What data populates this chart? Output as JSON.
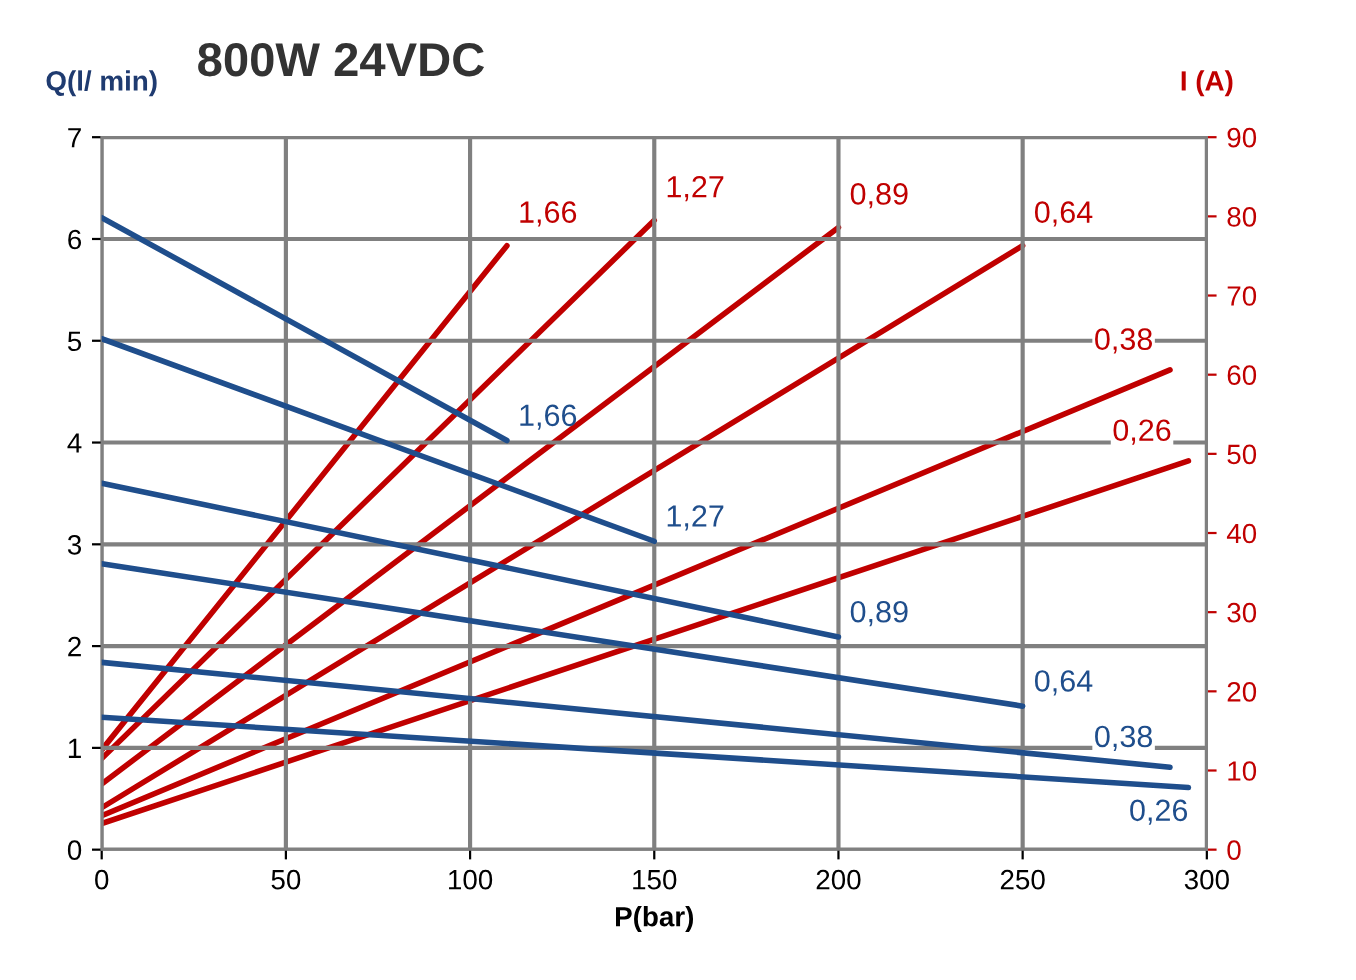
{
  "chart_data": {
    "type": "line",
    "title": "800W 24VDC",
    "xlabel": "P(bar)",
    "ylabel": "Q(l/ min)",
    "y2label": "I (A)",
    "xlim": [
      0,
      300
    ],
    "xticks": [
      0,
      50,
      100,
      150,
      200,
      250,
      300
    ],
    "ylim": [
      0,
      7
    ],
    "yticks": [
      0,
      1,
      2,
      3,
      4,
      5,
      6,
      7
    ],
    "y2lim": [
      0,
      90
    ],
    "y2ticks": [
      0,
      10,
      20,
      30,
      40,
      50,
      60,
      70,
      80,
      90
    ],
    "grid": true,
    "legend": false,
    "marker": "none",
    "line_style": "solid",
    "series": [
      {
        "name": "1,66",
        "color": "#1f4e8c",
        "x": [
          0,
          110
        ],
        "values": [
          6.21,
          4.02
        ]
      },
      {
        "name": "1,27",
        "color": "#1f4e8c",
        "x": [
          0,
          150
        ],
        "values": [
          5.02,
          3.03
        ]
      },
      {
        "name": "0,89",
        "color": "#1f4e8c",
        "x": [
          0,
          200
        ],
        "values": [
          3.6,
          2.09
        ]
      },
      {
        "name": "0,64",
        "color": "#1f4e8c",
        "x": [
          0,
          250
        ],
        "values": [
          2.81,
          1.41
        ]
      },
      {
        "name": "0,38",
        "color": "#1f4e8c",
        "x": [
          0,
          290
        ],
        "values": [
          1.84,
          0.81
        ]
      },
      {
        "name": "0,26",
        "color": "#1f4e8c",
        "x": [
          0,
          295
        ],
        "values": [
          1.3,
          0.61
        ]
      },
      {
        "name": "1,66",
        "color": "#c00000",
        "axis": "y2",
        "x": [
          0,
          110
        ],
        "values": [
          12.6,
          76.3
        ]
      },
      {
        "name": "1,27",
        "color": "#c00000",
        "axis": "y2",
        "x": [
          0,
          150
        ],
        "values": [
          11.5,
          79.5
        ]
      },
      {
        "name": "0,89",
        "color": "#c00000",
        "axis": "y2",
        "x": [
          0,
          200
        ],
        "values": [
          8.3,
          78.6
        ]
      },
      {
        "name": "0,64",
        "color": "#c00000",
        "axis": "y2",
        "x": [
          0,
          250
        ],
        "values": [
          5.3,
          76.3
        ]
      },
      {
        "name": "0,38",
        "color": "#c00000",
        "axis": "y2",
        "x": [
          0,
          290
        ],
        "values": [
          4.3,
          60.6
        ]
      },
      {
        "name": "0,26",
        "color": "#c00000",
        "axis": "y2",
        "x": [
          0,
          295
        ],
        "values": [
          3.3,
          49.1
        ]
      }
    ]
  }
}
